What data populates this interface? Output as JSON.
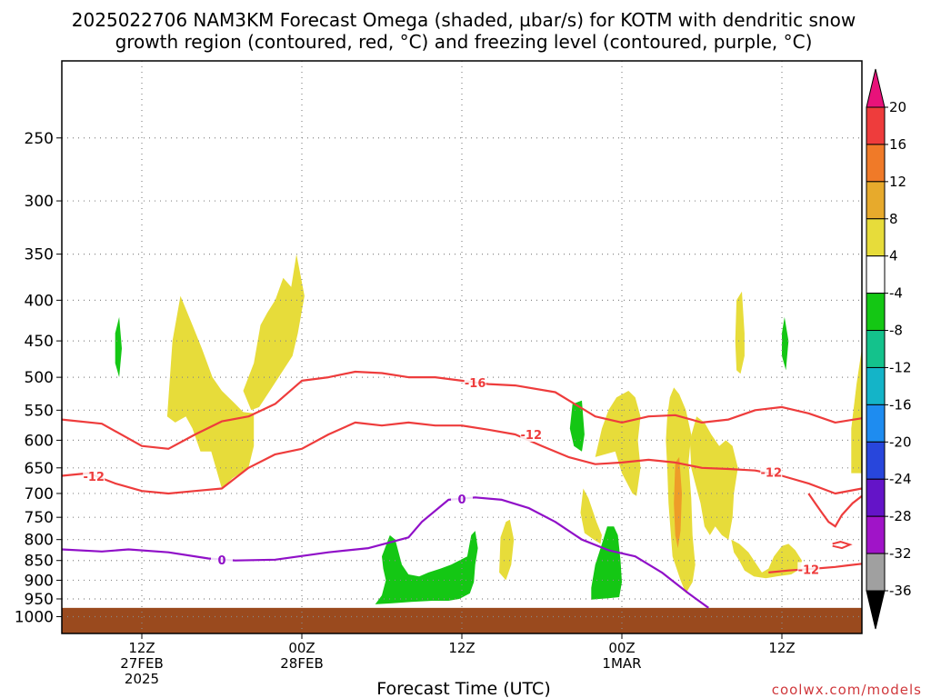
{
  "chart_data": {
    "type": "heatmap",
    "title_line1": "2025022706 NAM3KM Forecast Omega (shaded, µbar/s) for KOTM with dendritic snow",
    "title_line2": "growth region (contoured, red, °C) and freezing level (contoured, purple, °C)",
    "xlabel": "Forecast Time (UTC)",
    "credit": "coolwx.com/models",
    "y_ticks": [
      250,
      300,
      350,
      400,
      450,
      500,
      550,
      600,
      650,
      700,
      750,
      800,
      850,
      900,
      950,
      1000
    ],
    "x_ticks": [
      {
        "h": 6,
        "line1": "12Z",
        "line2": "27FEB",
        "line3": "2025"
      },
      {
        "h": 18,
        "line1": "00Z",
        "line2": "28FEB",
        "line3": ""
      },
      {
        "h": 30,
        "line1": "12Z",
        "line2": "",
        "line3": ""
      },
      {
        "h": 42,
        "line1": "00Z",
        "line2": "1MAR",
        "line3": ""
      },
      {
        "h": 54,
        "line1": "12Z",
        "line2": "",
        "line3": ""
      }
    ],
    "xlim": [
      0,
      60
    ],
    "ylim_hpa": [
      1050,
      200
    ],
    "grid": true,
    "colorbar": {
      "labels": [
        "20",
        "16",
        "12",
        "8",
        "4",
        "-4",
        "-8",
        "-12",
        "-16",
        "-20",
        "-24",
        "-28",
        "-32",
        "-36"
      ],
      "colors": [
        "#e8127a",
        "#ee3c3c",
        "#f07a28",
        "#e7aa2c",
        "#e7dc3a",
        "#ffffff",
        "#14c714",
        "#14c28c",
        "#14b4c8",
        "#1e8cf0",
        "#2846dc",
        "#6414c8",
        "#a014c8",
        "#a0a0a0",
        "#000000"
      ]
    },
    "ground_hpa": 975,
    "contour_labels": {
      "dgz_upper": "-16",
      "dgz_lower": "-12",
      "dgz_left": "-12",
      "dgz_right": "-12",
      "dgz_bottom": "-12",
      "freezing": "0",
      "freezing_left": "0"
    },
    "dgz_upper_line": [
      [
        0,
        565
      ],
      [
        3,
        572
      ],
      [
        6,
        610
      ],
      [
        8,
        615
      ],
      [
        10,
        590
      ],
      [
        12,
        568
      ],
      [
        14,
        560
      ],
      [
        16,
        540
      ],
      [
        18,
        505
      ],
      [
        20,
        500
      ],
      [
        22,
        492
      ],
      [
        24,
        494
      ],
      [
        26,
        500
      ],
      [
        28,
        500
      ],
      [
        30,
        505
      ],
      [
        32,
        510
      ],
      [
        34,
        512
      ],
      [
        37,
        522
      ],
      [
        40,
        560
      ],
      [
        42,
        570
      ],
      [
        44,
        560
      ],
      [
        46,
        558
      ],
      [
        48,
        570
      ],
      [
        50,
        565
      ],
      [
        52,
        550
      ],
      [
        54,
        545
      ],
      [
        56,
        555
      ],
      [
        58,
        570
      ],
      [
        60,
        563
      ]
    ],
    "dgz_lower_line": [
      [
        0,
        665
      ],
      [
        2,
        660
      ],
      [
        4,
        680
      ],
      [
        6,
        695
      ],
      [
        8,
        700
      ],
      [
        10,
        695
      ],
      [
        12,
        690
      ],
      [
        14,
        650
      ],
      [
        16,
        625
      ],
      [
        18,
        615
      ],
      [
        20,
        590
      ],
      [
        22,
        570
      ],
      [
        24,
        575
      ],
      [
        26,
        570
      ],
      [
        28,
        575
      ],
      [
        30,
        575
      ],
      [
        32,
        582
      ],
      [
        34,
        590
      ],
      [
        36,
        610
      ],
      [
        38,
        630
      ],
      [
        40,
        643
      ],
      [
        42,
        640
      ],
      [
        44,
        635
      ],
      [
        46,
        640
      ],
      [
        48,
        650
      ],
      [
        50,
        652
      ],
      [
        52,
        655
      ],
      [
        54,
        665
      ],
      [
        56,
        680
      ],
      [
        58,
        700
      ],
      [
        60,
        690
      ]
    ],
    "freezing_line": [
      [
        0,
        823
      ],
      [
        3,
        828
      ],
      [
        5,
        823
      ],
      [
        8,
        830
      ],
      [
        11,
        845
      ],
      [
        13,
        850
      ],
      [
        16,
        848
      ],
      [
        20,
        830
      ],
      [
        23,
        820
      ],
      [
        26,
        795
      ],
      [
        27,
        760
      ],
      [
        29,
        713
      ],
      [
        31,
        708
      ],
      [
        33,
        713
      ],
      [
        35,
        730
      ],
      [
        37,
        760
      ],
      [
        39,
        800
      ],
      [
        41,
        825
      ],
      [
        43,
        840
      ],
      [
        45,
        880
      ],
      [
        47,
        935
      ],
      [
        48.5,
        975
      ]
    ],
    "omega_regions": [
      {
        "color": "#e7dc3a",
        "points": [
          [
            7.9,
            560
          ],
          [
            8.3,
            450
          ],
          [
            8.9,
            395
          ],
          [
            9.8,
            430
          ],
          [
            10.5,
            460
          ],
          [
            11.3,
            500
          ],
          [
            12.0,
            520
          ],
          [
            13.0,
            540
          ],
          [
            13.6,
            553
          ],
          [
            14.4,
            555
          ],
          [
            14.4,
            610
          ],
          [
            14.0,
            650
          ],
          [
            12.8,
            670
          ],
          [
            12.0,
            690
          ],
          [
            11.2,
            620
          ],
          [
            10.4,
            620
          ],
          [
            9.8,
            580
          ],
          [
            9.3,
            560
          ],
          [
            8.5,
            570
          ]
        ]
      },
      {
        "color": "#e7dc3a",
        "points": [
          [
            13.6,
            520
          ],
          [
            14.4,
            480
          ],
          [
            14.9,
            430
          ],
          [
            15.4,
            415
          ],
          [
            16.0,
            400
          ],
          [
            16.6,
            375
          ],
          [
            17.2,
            385
          ],
          [
            17.6,
            350
          ],
          [
            18.2,
            395
          ],
          [
            17.7,
            440
          ],
          [
            17.3,
            470
          ],
          [
            16.6,
            490
          ],
          [
            15.6,
            520
          ],
          [
            14.8,
            545
          ],
          [
            14.2,
            550
          ]
        ]
      },
      {
        "color": "#e7dc3a",
        "points": [
          [
            32.9,
            795
          ],
          [
            33.3,
            760
          ],
          [
            33.6,
            755
          ],
          [
            33.9,
            800
          ],
          [
            33.7,
            860
          ],
          [
            33.3,
            900
          ],
          [
            32.8,
            880
          ]
        ]
      },
      {
        "color": "#e7dc3a",
        "points": [
          [
            38.9,
            740
          ],
          [
            39.1,
            690
          ],
          [
            39.5,
            710
          ],
          [
            40.1,
            760
          ],
          [
            40.5,
            790
          ],
          [
            40.4,
            810
          ],
          [
            39.9,
            800
          ],
          [
            39.2,
            785
          ]
        ]
      },
      {
        "color": "#e7dc3a",
        "points": [
          [
            40.0,
            630
          ],
          [
            40.5,
            580
          ],
          [
            41.0,
            550
          ],
          [
            41.6,
            530
          ],
          [
            42.5,
            520
          ],
          [
            43.0,
            530
          ],
          [
            43.4,
            560
          ],
          [
            43.2,
            600
          ],
          [
            43.4,
            650
          ],
          [
            43.1,
            705
          ],
          [
            42.8,
            700
          ],
          [
            42.0,
            660
          ],
          [
            41.5,
            620
          ]
        ]
      },
      {
        "color": "#e7dc3a",
        "points": [
          [
            45.3,
            600
          ],
          [
            45.4,
            560
          ],
          [
            45.6,
            530
          ],
          [
            45.9,
            515
          ],
          [
            46.3,
            525
          ],
          [
            46.8,
            550
          ],
          [
            47.2,
            590
          ],
          [
            47.0,
            640
          ],
          [
            47.2,
            710
          ],
          [
            47.3,
            790
          ],
          [
            47.5,
            860
          ],
          [
            47.3,
            905
          ],
          [
            46.8,
            935
          ],
          [
            46.4,
            900
          ],
          [
            45.8,
            840
          ],
          [
            45.5,
            720
          ],
          [
            45.4,
            650
          ]
        ]
      },
      {
        "color": "#e7dc3a",
        "points": [
          [
            47.1,
            600
          ],
          [
            47.6,
            560
          ],
          [
            48.2,
            570
          ],
          [
            48.7,
            590
          ],
          [
            49.3,
            610
          ],
          [
            49.8,
            600
          ],
          [
            50.3,
            610
          ],
          [
            50.7,
            650
          ],
          [
            50.4,
            700
          ],
          [
            50.3,
            750
          ],
          [
            50.0,
            800
          ],
          [
            49.5,
            790
          ],
          [
            49.0,
            770
          ],
          [
            48.6,
            790
          ],
          [
            48.2,
            770
          ],
          [
            47.9,
            720
          ],
          [
            47.5,
            680
          ],
          [
            47.2,
            650
          ]
        ]
      },
      {
        "color": "#e7dc3a",
        "points": [
          [
            50.2,
            800
          ],
          [
            50.8,
            810
          ],
          [
            51.5,
            830
          ],
          [
            52.0,
            855
          ],
          [
            52.5,
            880
          ],
          [
            53.0,
            870
          ],
          [
            53.4,
            840
          ],
          [
            54.0,
            815
          ],
          [
            54.5,
            810
          ],
          [
            55.0,
            825
          ],
          [
            55.5,
            850
          ],
          [
            55.4,
            870
          ],
          [
            54.7,
            885
          ],
          [
            53.6,
            890
          ],
          [
            52.8,
            895
          ],
          [
            51.9,
            890
          ],
          [
            51.2,
            875
          ],
          [
            50.8,
            850
          ],
          [
            50.4,
            830
          ]
        ]
      },
      {
        "color": "#e7dc3a",
        "points": [
          [
            50.6,
            400
          ],
          [
            51.0,
            390
          ],
          [
            51.2,
            440
          ],
          [
            51.2,
            470
          ],
          [
            50.9,
            495
          ],
          [
            50.6,
            490
          ],
          [
            50.5,
            450
          ]
        ]
      },
      {
        "color": "#e7dc3a",
        "points": [
          [
            59.2,
            580
          ],
          [
            59.6,
            510
          ],
          [
            60.0,
            460
          ],
          [
            60.0,
            660
          ],
          [
            59.2,
            660
          ]
        ]
      },
      {
        "color": "#ee9c28",
        "points": [
          [
            46.0,
            640
          ],
          [
            46.3,
            630
          ],
          [
            46.5,
            700
          ],
          [
            46.4,
            780
          ],
          [
            46.2,
            820
          ],
          [
            46.0,
            790
          ],
          [
            45.9,
            720
          ]
        ]
      },
      {
        "color": "#14c714",
        "points": [
          [
            4.0,
            440
          ],
          [
            4.3,
            420
          ],
          [
            4.5,
            460
          ],
          [
            4.3,
            500
          ],
          [
            4.0,
            480
          ]
        ]
      },
      {
        "color": "#14c714",
        "points": [
          [
            54.0,
            440
          ],
          [
            54.2,
            420
          ],
          [
            54.5,
            450
          ],
          [
            54.3,
            490
          ],
          [
            54.0,
            470
          ]
        ]
      },
      {
        "color": "#14c714",
        "points": [
          [
            38.1,
            580
          ],
          [
            38.3,
            540
          ],
          [
            39.0,
            535
          ],
          [
            39.2,
            590
          ],
          [
            39.0,
            620
          ],
          [
            38.4,
            610
          ]
        ]
      },
      {
        "color": "#14c714",
        "points": [
          [
            24.0,
            840
          ],
          [
            24.6,
            790
          ],
          [
            25.0,
            800
          ],
          [
            25.5,
            860
          ],
          [
            26.0,
            885
          ],
          [
            26.8,
            890
          ],
          [
            27.5,
            880
          ],
          [
            28.4,
            870
          ],
          [
            29.2,
            860
          ],
          [
            29.8,
            850
          ],
          [
            30.4,
            840
          ],
          [
            30.7,
            790
          ],
          [
            31.0,
            780
          ],
          [
            31.2,
            820
          ],
          [
            31.0,
            860
          ],
          [
            30.9,
            905
          ],
          [
            30.6,
            935
          ],
          [
            29.8,
            950
          ],
          [
            29.0,
            955
          ],
          [
            27.8,
            955
          ],
          [
            26.2,
            958
          ],
          [
            24.8,
            962
          ],
          [
            23.5,
            965
          ],
          [
            24.0,
            940
          ],
          [
            24.3,
            900
          ],
          [
            24.1,
            870
          ]
        ]
      },
      {
        "color": "#14c714",
        "points": [
          [
            39.7,
            920
          ],
          [
            40.0,
            860
          ],
          [
            40.3,
            830
          ],
          [
            40.6,
            800
          ],
          [
            40.9,
            770
          ],
          [
            41.4,
            770
          ],
          [
            41.7,
            790
          ],
          [
            41.9,
            850
          ],
          [
            42.0,
            905
          ],
          [
            41.8,
            945
          ],
          [
            41.0,
            948
          ],
          [
            40.3,
            950
          ],
          [
            39.7,
            952
          ]
        ]
      }
    ]
  }
}
